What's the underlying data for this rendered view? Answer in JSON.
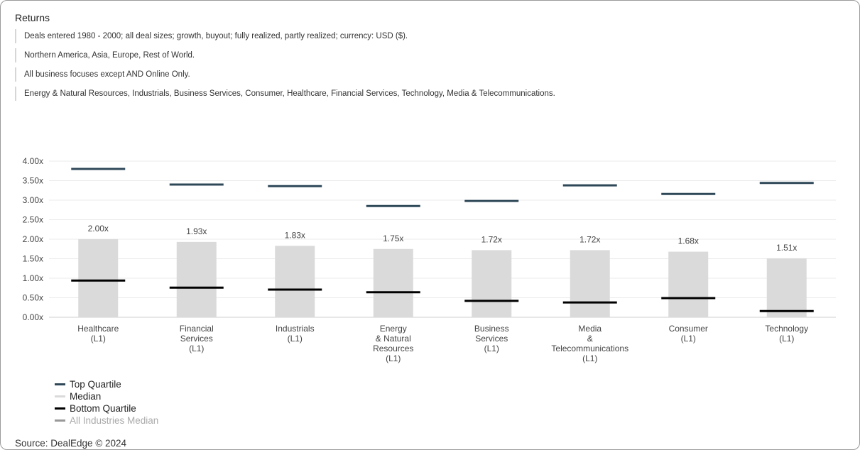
{
  "panel": {
    "title": "Returns",
    "filters": [
      "Deals entered 1980 - 2000; all deal sizes; growth, buyout; fully realized, partly realized; currency: USD ($).",
      "Northern America, Asia, Europe, Rest of World.",
      "All business focuses except AND Online Only.",
      "Energy & Natural Resources, Industrials, Business Services, Consumer, Healthcare, Financial Services, Technology, Media & Telecommunications."
    ],
    "source": "Source: DealEdge © 2024"
  },
  "colors": {
    "top_quartile": "#2f4858",
    "median": "#dadada",
    "bottom_quartile": "#000000",
    "all_industries_median": "#999999",
    "grid": "#ebebeb"
  },
  "chart_data": {
    "type": "bar",
    "title": "",
    "xlabel": "",
    "ylabel": "",
    "ylim": [
      0,
      4
    ],
    "y_ticks": [
      {
        "value": 0,
        "label": "0.00x"
      },
      {
        "value": 0.5,
        "label": "0.50x"
      },
      {
        "value": 1.0,
        "label": "1.00x"
      },
      {
        "value": 1.5,
        "label": "1.50x"
      },
      {
        "value": 2.0,
        "label": "2.00x"
      },
      {
        "value": 2.5,
        "label": "2.50x"
      },
      {
        "value": 3.0,
        "label": "3.00x"
      },
      {
        "value": 3.5,
        "label": "3.50x"
      },
      {
        "value": 4.0,
        "label": "4.00x"
      }
    ],
    "categories": [
      [
        "Healthcare",
        "(L1)"
      ],
      [
        "Financial",
        "Services",
        "(L1)"
      ],
      [
        "Industrials",
        "(L1)"
      ],
      [
        "Energy",
        "& Natural",
        "Resources",
        "(L1)"
      ],
      [
        "Business",
        "Services",
        "(L1)"
      ],
      [
        "Media",
        "&",
        "Telecommunications",
        "(L1)"
      ],
      [
        "Consumer",
        "(L1)"
      ],
      [
        "Technology",
        "(L1)"
      ]
    ],
    "series": [
      {
        "name": "Top Quartile",
        "values": [
          3.8,
          3.4,
          3.36,
          2.85,
          2.98,
          3.38,
          3.16,
          3.44
        ]
      },
      {
        "name": "Median",
        "values": [
          2.0,
          1.93,
          1.83,
          1.75,
          1.72,
          1.72,
          1.68,
          1.51
        ]
      },
      {
        "name": "Bottom Quartile",
        "values": [
          0.94,
          0.76,
          0.71,
          0.64,
          0.42,
          0.38,
          0.49,
          0.16
        ]
      }
    ],
    "median_labels": [
      "2.00x",
      "1.93x",
      "1.83x",
      "1.75x",
      "1.72x",
      "1.72x",
      "1.68x",
      "1.51x"
    ],
    "legend": {
      "position": "bottom-left",
      "entries": [
        "Top Quartile",
        "Median",
        "Bottom Quartile",
        "All Industries Median"
      ]
    }
  }
}
